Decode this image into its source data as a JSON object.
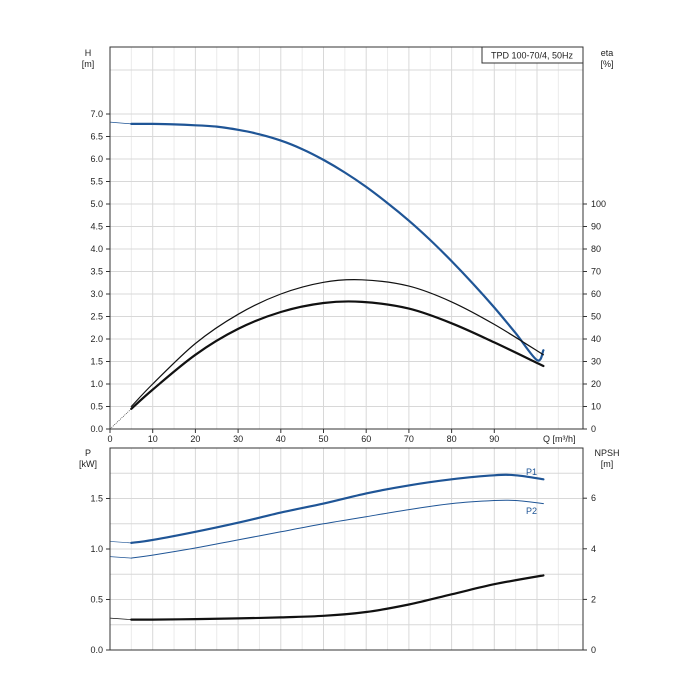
{
  "chart_data": [
    {
      "type": "line",
      "name_box": "TPD 100-70/4, 50Hz",
      "ylabel_left": "H",
      "ylabel_left_unit": "[m]",
      "ylabel_right": "eta",
      "ylabel_right_unit": "[%]",
      "xlabel": "Q [m³/h]",
      "xlim": [
        0,
        110
      ],
      "ylim_left": [
        0,
        7.0
      ],
      "ylim_right": [
        0,
        100
      ],
      "xticks": [
        "0",
        "10",
        "20",
        "30",
        "40",
        "50",
        "60",
        "70",
        "80",
        "90"
      ],
      "yticks_left": [
        "0.0",
        "0.5",
        "1.0",
        "1.5",
        "2.0",
        "2.5",
        "3.0",
        "3.5",
        "4.0",
        "4.5",
        "5.0",
        "5.5",
        "6.0",
        "6.5",
        "7.0"
      ],
      "yticks_right": [
        "0",
        "10",
        "20",
        "30",
        "40",
        "50",
        "60",
        "70",
        "80",
        "90",
        "100"
      ],
      "grid": true,
      "series": [
        {
          "axis": "left",
          "color": "#1f5596",
          "width": 2.2,
          "x": [
            5,
            10,
            15,
            20,
            25,
            30,
            35,
            40,
            45,
            50,
            55,
            60,
            65,
            70,
            75,
            80,
            85,
            90,
            95,
            100,
            101.5
          ],
          "y": [
            6.78,
            6.78,
            6.77,
            6.75,
            6.72,
            6.65,
            6.55,
            6.41,
            6.22,
            5.98,
            5.7,
            5.38,
            5.02,
            4.63,
            4.2,
            3.73,
            3.23,
            2.7,
            2.13,
            1.53,
            1.75
          ]
        },
        {
          "axis": "right",
          "color": "#111111",
          "width": 1.2,
          "x": [
            5,
            10,
            20,
            30,
            40,
            50,
            59,
            70,
            80,
            90,
            101.5
          ],
          "y": [
            10,
            20,
            38,
            51,
            60,
            65.2,
            66.3,
            63.5,
            56.5,
            46.5,
            33
          ]
        },
        {
          "axis": "right",
          "color": "#111111",
          "width": 2.2,
          "x": [
            5,
            10,
            20,
            30,
            40,
            50,
            59,
            70,
            80,
            90,
            101.5
          ],
          "y": [
            9,
            17.5,
            33,
            44.5,
            52,
            56,
            56.5,
            53.5,
            47,
            38.5,
            28
          ]
        }
      ]
    },
    {
      "type": "line",
      "ylabel_left": "P",
      "ylabel_left_unit": "[kW]",
      "ylabel_right": "NPSH",
      "ylabel_right_unit": "[m]",
      "xlim": [
        0,
        110
      ],
      "ylim_left": [
        0,
        2.0
      ],
      "ylim_right": [
        0,
        8
      ],
      "yticks_left": [
        "0.0",
        "0.5",
        "1.0",
        "1.5"
      ],
      "yticks_right": [
        "0",
        "2",
        "4",
        "6"
      ],
      "grid": true,
      "series": [
        {
          "name": "P1",
          "axis": "left",
          "color": "#1f5596",
          "width": 2.2,
          "x": [
            5,
            10,
            20,
            30,
            40,
            50,
            60,
            70,
            80,
            90,
            95,
            101.5
          ],
          "y": [
            1.06,
            1.09,
            1.17,
            1.26,
            1.36,
            1.45,
            1.55,
            1.63,
            1.69,
            1.73,
            1.73,
            1.69
          ]
        },
        {
          "name": "P2",
          "axis": "left",
          "color": "#1f5596",
          "width": 1.0,
          "x": [
            5,
            10,
            20,
            30,
            40,
            50,
            60,
            70,
            80,
            90,
            95,
            101.5
          ],
          "y": [
            0.91,
            0.94,
            1.01,
            1.09,
            1.17,
            1.25,
            1.32,
            1.39,
            1.45,
            1.48,
            1.48,
            1.45
          ]
        },
        {
          "axis": "right",
          "color": "#111111",
          "width": 2.2,
          "x": [
            5,
            10,
            20,
            30,
            40,
            50,
            60,
            70,
            80,
            90,
            101.5
          ],
          "y": [
            1.2,
            1.2,
            1.22,
            1.25,
            1.29,
            1.35,
            1.5,
            1.8,
            2.2,
            2.6,
            2.95
          ]
        }
      ]
    }
  ]
}
